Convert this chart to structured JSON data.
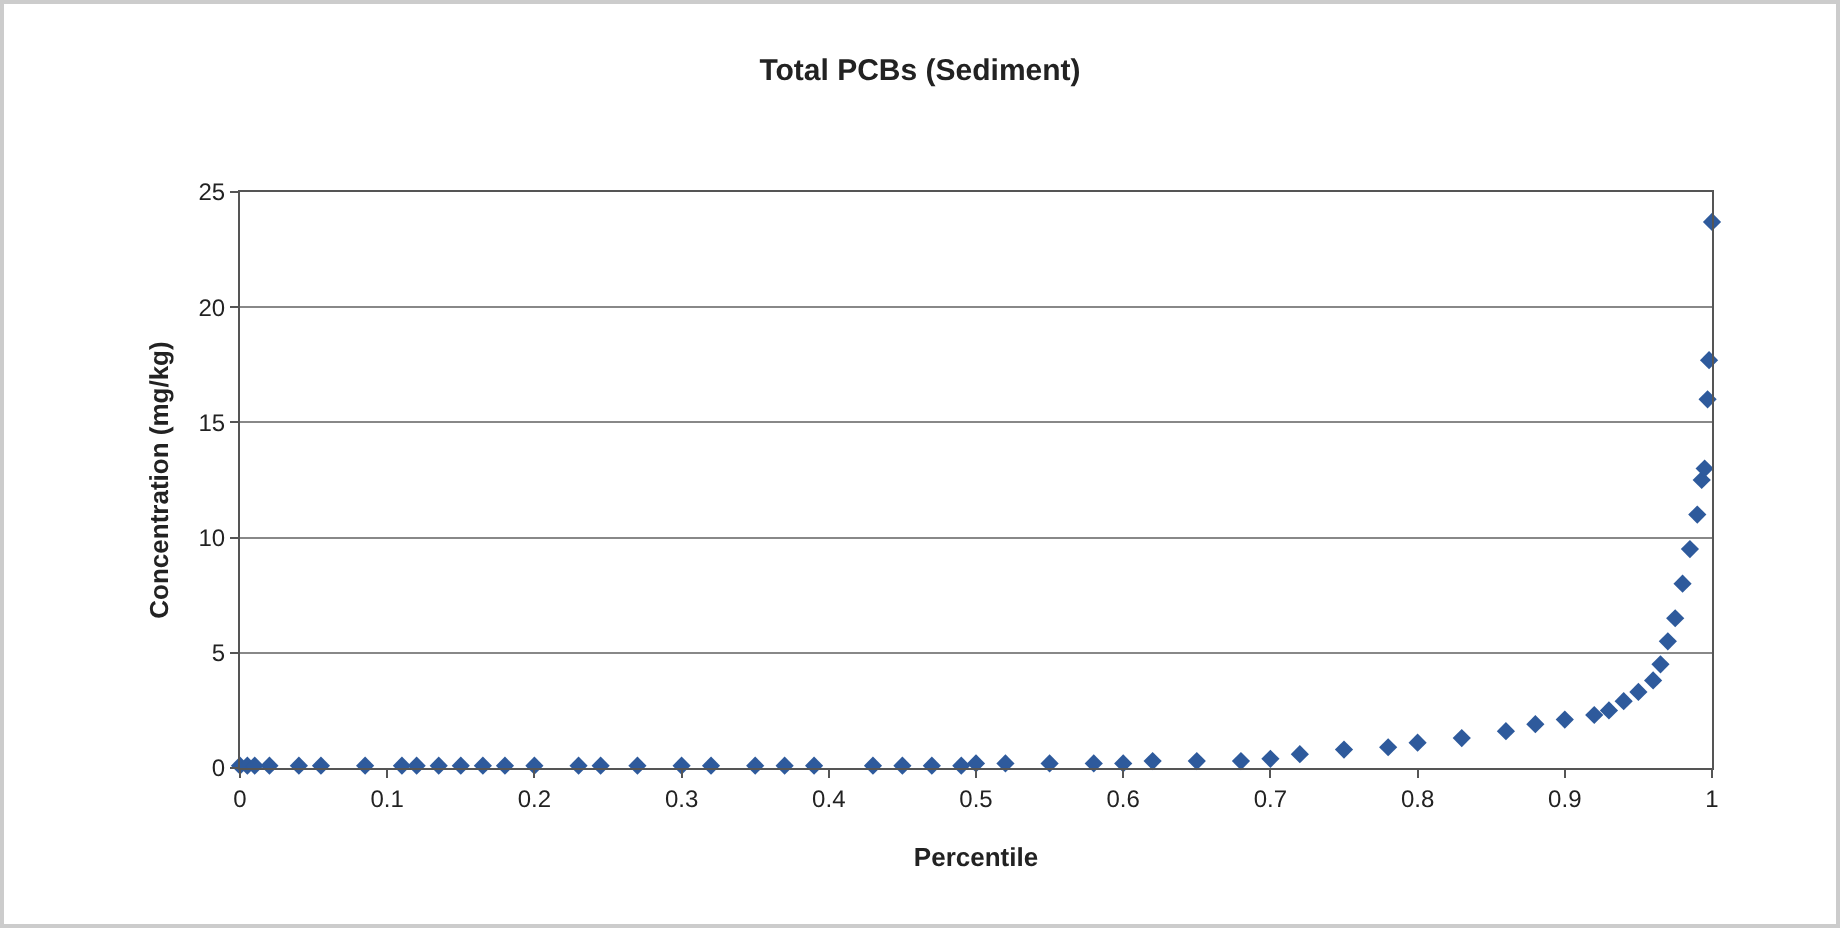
{
  "chart_data": {
    "type": "scatter",
    "title": "Total PCBs (Sediment)",
    "xlabel": "Percentile",
    "ylabel": "Concentration (mg/kg)",
    "x": [
      0,
      0.005,
      0.01,
      0.02,
      0.04,
      0.055,
      0.085,
      0.11,
      0.12,
      0.135,
      0.15,
      0.165,
      0.18,
      0.2,
      0.23,
      0.245,
      0.27,
      0.3,
      0.32,
      0.35,
      0.37,
      0.39,
      0.43,
      0.45,
      0.47,
      0.49,
      0.5,
      0.52,
      0.55,
      0.58,
      0.6,
      0.62,
      0.65,
      0.68,
      0.7,
      0.72,
      0.75,
      0.78,
      0.8,
      0.83,
      0.86,
      0.88,
      0.9,
      0.92,
      0.93,
      0.94,
      0.95,
      0.96,
      0.965,
      0.97,
      0.975,
      0.98,
      0.985,
      0.99,
      0.993,
      0.995,
      0.997,
      0.998,
      1
    ],
    "series": [
      {
        "color": "#2e5a9c",
        "values": [
          0.1,
          0.1,
          0.1,
          0.1,
          0.1,
          0.1,
          0.1,
          0.1,
          0.1,
          0.1,
          0.1,
          0.1,
          0.1,
          0.1,
          0.1,
          0.1,
          0.1,
          0.1,
          0.1,
          0.1,
          0.1,
          0.1,
          0.1,
          0.1,
          0.1,
          0.1,
          0.2,
          0.2,
          0.2,
          0.2,
          0.2,
          0.3,
          0.3,
          0.3,
          0.4,
          0.6,
          0.8,
          0.9,
          1.1,
          1.3,
          1.6,
          1.9,
          2.1,
          2.3,
          2.5,
          2.9,
          3.3,
          3.8,
          4.5,
          5.5,
          6.5,
          8,
          9.5,
          11,
          12.5,
          13,
          16,
          17.7,
          23.7
        ]
      }
    ],
    "xlim": [
      0,
      1
    ],
    "xticks": [
      0,
      0.1,
      0.2,
      0.3,
      0.4,
      0.5,
      0.6,
      0.7,
      0.8,
      0.9,
      1
    ],
    "ylim": [
      0,
      25
    ],
    "yticks": [
      0,
      5,
      10,
      15,
      20,
      25
    ],
    "grid": "y",
    "marker": "diamond"
  }
}
